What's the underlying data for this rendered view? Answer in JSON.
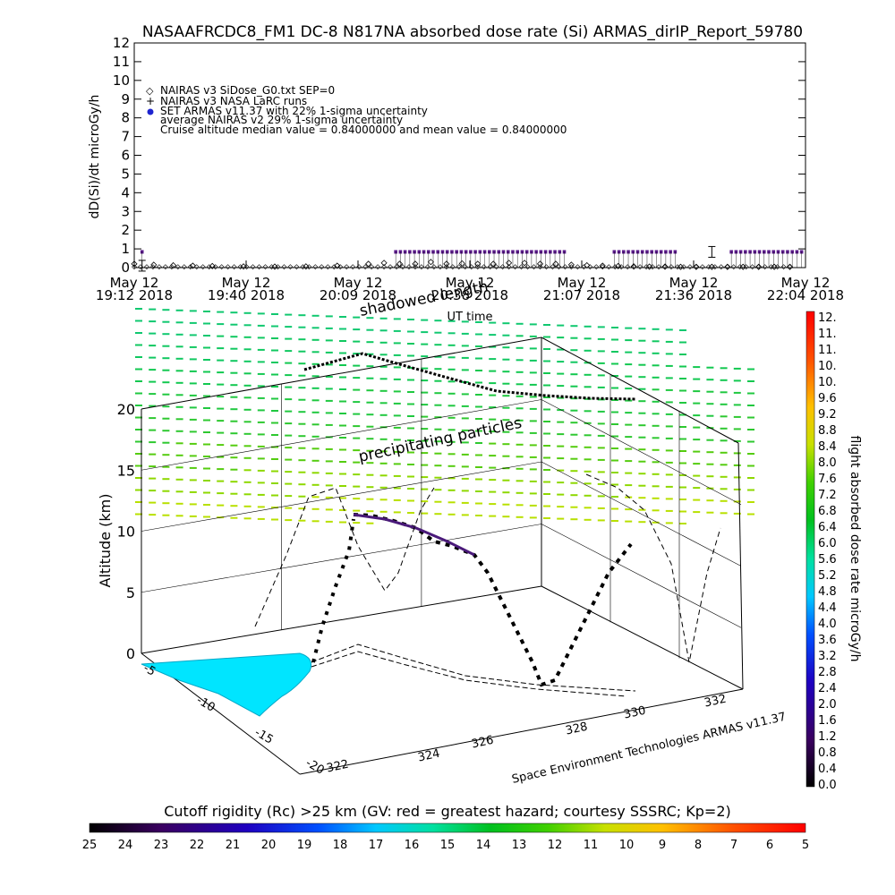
{
  "title": "NASAAFRCDC8_FM1 DC-8    N817NA absorbed dose rate (Si) ARMAS_dirIP_Report_59780",
  "top_panel": {
    "ylabel": "dD(Si)/dt microGy/h",
    "xlabel": "UT time",
    "legend": [
      "NAIRAS v3 SiDose_G0.txt SEP=0",
      "NAIRAS v3 NASA LaRC runs",
      "SET ARMAS v11.37 with 22% 1-sigma uncertainty",
      "average NAIRAS v2 29% 1-sigma uncertainty",
      "Cruise altitude median value = 0.84000000 and mean value = 0.84000000"
    ],
    "x_tick_dates": [
      "May 12",
      "May 12",
      "May 12",
      "May 12",
      "May 12",
      "May 12",
      "May 12"
    ],
    "x_tick_times": [
      "19:12 2018",
      "19:40 2018",
      "20:09 2018",
      "20:38 2018",
      "21:07 2018",
      "21:36 2018",
      "22:04 2018"
    ],
    "y_ticks": [
      "0",
      "1",
      "2",
      "3",
      "4",
      "5",
      "6",
      "7",
      "8",
      "9",
      "10",
      "11",
      "12"
    ]
  },
  "overlay_labels": {
    "shadowed": "shadowed length",
    "precipitating": "precipitating particles"
  },
  "bottom_panel": {
    "zlabel": "Altitude (km)",
    "z_ticks": [
      "0",
      "5",
      "10",
      "15",
      "20"
    ],
    "lat_ticks": [
      "-5",
      "-10",
      "-15",
      "-20"
    ],
    "lon_ticks": [
      "322",
      "324",
      "326",
      "328",
      "330",
      "332"
    ],
    "credit": "Space Environment Technologies ARMAS v11.37"
  },
  "right_colorbar": {
    "label": "flight absorbed dose rate microGy/h",
    "ticks": [
      "12.",
      "11.",
      "11.",
      "10.",
      "10.",
      "9.6",
      "9.2",
      "8.8",
      "8.4",
      "8.0",
      "7.6",
      "7.2",
      "6.8",
      "6.4",
      "6.0",
      "5.6",
      "5.2",
      "4.8",
      "4.4",
      "4.0",
      "3.6",
      "3.2",
      "2.8",
      "2.4",
      "2.0",
      "1.6",
      "1.2",
      "0.8",
      "0.4",
      "0.0"
    ]
  },
  "bottom_colorbar": {
    "label": "Cutoff rigidity (Rc) >25 km (GV: red = greatest hazard; courtesy SSSRC; Kp=2)",
    "ticks": [
      "25",
      "24",
      "23",
      "22",
      "21",
      "20",
      "19",
      "18",
      "17",
      "16",
      "15",
      "14",
      "13",
      "12",
      "11",
      "10",
      "9",
      "8",
      "7",
      "6",
      "5"
    ]
  },
  "chart_data": [
    {
      "type": "scatter",
      "title": "NASAAFRCDC8_FM1 DC-8    N817NA absorbed dose rate (Si) ARMAS_dirIP_Report_59780",
      "xlabel": "UT time",
      "ylabel": "dD(Si)/dt microGy/h",
      "xlim": [
        "19:12",
        "22:04"
      ],
      "ylim": [
        0,
        12
      ],
      "series": [
        {
          "name": "NAIRAS v3 SiDose_G0.txt SEP=0",
          "x_minutes": [
            0,
            5,
            10,
            15,
            20,
            28,
            36,
            44,
            52,
            60,
            64,
            68,
            72,
            76,
            80,
            84,
            88,
            92,
            96,
            100,
            104,
            108,
            112,
            116,
            120,
            124,
            128,
            132,
            136,
            140,
            144,
            148,
            152,
            156,
            160,
            164,
            168
          ],
          "values": [
            0.2,
            0.15,
            0.12,
            0.1,
            0.08,
            0.06,
            0.05,
            0.06,
            0.1,
            0.2,
            0.25,
            0.2,
            0.2,
            0.3,
            0.2,
            0.22,
            0.2,
            0.2,
            0.25,
            0.25,
            0.2,
            0.2,
            0.15,
            0.12,
            0.1,
            0.08,
            0.06,
            0.05,
            0.05,
            0.04,
            0.04,
            0.04,
            0.04,
            0.04,
            0.04,
            0.04,
            0.04
          ]
        },
        {
          "name": "SET ARMAS v11.37 with 22% 1-sigma uncertainty",
          "segments": [
            [
              2,
              2
            ],
            [
              67,
              84
            ],
            [
              85,
              111
            ],
            [
              123,
              139
            ],
            [
              153,
              171
            ]
          ],
          "value": 0.84
        },
        {
          "name": "NAIRAS v3 NASA LaRC runs",
          "x_minutes": [
            2,
            148
          ],
          "values": [
            0.1,
            0.84
          ]
        }
      ]
    },
    {
      "type": "scatter",
      "zlabel": "Altitude (km)",
      "zlim": [
        0,
        20
      ],
      "lat_range": [
        -5,
        -20
      ],
      "lon_range": [
        322,
        332
      ]
    }
  ]
}
